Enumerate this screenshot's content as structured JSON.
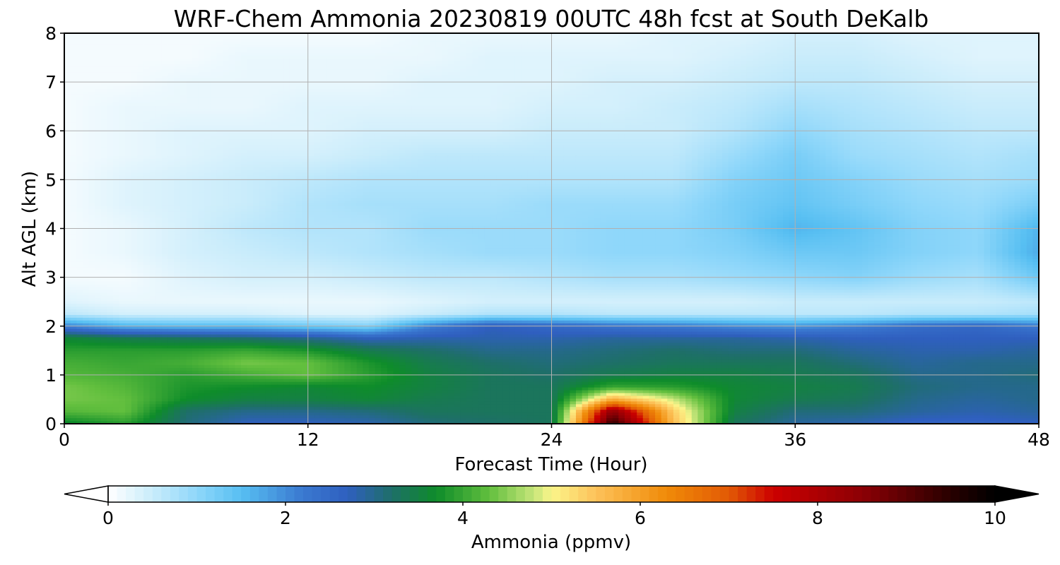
{
  "chart_data": {
    "type": "heatmap",
    "title": "WRF-Chem Ammonia  20230819 00UTC 48h fcst at South DeKalb",
    "xlabel": "Forecast Time (Hour)",
    "ylabel": "Alt AGL (km)",
    "xlim": [
      0,
      48
    ],
    "ylim": [
      0,
      8
    ],
    "x_ticks": [
      "0",
      "12",
      "24",
      "36",
      "48"
    ],
    "y_ticks": [
      "0",
      "1",
      "2",
      "3",
      "4",
      "5",
      "6",
      "7",
      "8"
    ],
    "grid": true,
    "x": [
      0,
      3,
      6,
      9,
      12,
      15,
      18,
      21,
      24,
      27,
      30,
      33,
      36,
      39,
      42,
      45,
      48
    ],
    "y": [
      0,
      0.25,
      0.5,
      0.75,
      1.0,
      1.25,
      1.5,
      1.75,
      2.0,
      2.25,
      2.5,
      3.0,
      3.5,
      4.0,
      4.5,
      5.0,
      5.5,
      6.0,
      6.5,
      7.0,
      7.5,
      8.0
    ],
    "z": [
      [
        3.6,
        3.9,
        3.1,
        2.7,
        2.7,
        2.8,
        3.1,
        3.2,
        3.3,
        9.5,
        5.6,
        3.3,
        2.9,
        2.8,
        2.6,
        2.6,
        2.7
      ],
      [
        4.2,
        4.3,
        3.2,
        3.0,
        3.0,
        3.1,
        3.3,
        3.3,
        3.3,
        8.5,
        5.4,
        3.5,
        3.1,
        3.1,
        2.9,
        2.8,
        2.9
      ],
      [
        4.4,
        4.3,
        3.7,
        3.5,
        3.5,
        3.6,
        3.4,
        3.3,
        3.3,
        5.8,
        4.8,
        3.6,
        3.4,
        3.3,
        3.0,
        2.9,
        3.0
      ],
      [
        4.4,
        4.2,
        3.8,
        3.7,
        3.6,
        3.7,
        3.5,
        3.3,
        3.3,
        4.0,
        3.9,
        3.6,
        3.5,
        3.4,
        3.1,
        3.0,
        3.0
      ],
      [
        4.2,
        4.1,
        3.9,
        4.1,
        4.3,
        3.9,
        3.5,
        3.3,
        3.2,
        3.4,
        3.5,
        3.5,
        3.4,
        3.3,
        3.0,
        3.0,
        3.1
      ],
      [
        4.1,
        4.0,
        4.1,
        4.4,
        4.3,
        3.8,
        3.4,
        3.2,
        3.1,
        3.2,
        3.3,
        3.3,
        3.3,
        3.1,
        2.9,
        3.0,
        3.0
      ],
      [
        3.9,
        3.9,
        3.9,
        4.0,
        3.8,
        3.4,
        3.2,
        3.0,
        3.0,
        3.1,
        3.2,
        3.1,
        3.1,
        2.9,
        2.8,
        2.8,
        2.9
      ],
      [
        3.6,
        3.4,
        3.3,
        3.2,
        3.0,
        2.7,
        2.8,
        2.8,
        2.8,
        2.9,
        2.9,
        2.9,
        2.8,
        2.7,
        2.7,
        2.7,
        2.7
      ],
      [
        2.1,
        1.6,
        1.5,
        1.5,
        1.3,
        1.1,
        2.1,
        2.7,
        2.5,
        2.3,
        2.2,
        2.0,
        1.9,
        2.1,
        2.4,
        2.5,
        2.2
      ],
      [
        0.6,
        0.4,
        0.4,
        0.4,
        0.3,
        0.3,
        0.5,
        0.7,
        0.7,
        0.6,
        0.6,
        0.6,
        0.6,
        0.6,
        0.7,
        0.7,
        0.8
      ],
      [
        0.3,
        0.2,
        0.2,
        0.2,
        0.2,
        0.2,
        0.3,
        0.4,
        0.4,
        0.4,
        0.4,
        0.4,
        0.5,
        0.5,
        0.5,
        0.5,
        0.6
      ],
      [
        0.1,
        0.1,
        0.3,
        0.4,
        0.4,
        0.5,
        0.6,
        0.6,
        0.7,
        0.8,
        0.8,
        0.9,
        1.0,
        1.1,
        0.9,
        0.8,
        1.3
      ],
      [
        0.1,
        0.2,
        0.4,
        0.5,
        0.6,
        0.7,
        0.8,
        0.9,
        0.9,
        1.0,
        1.0,
        1.1,
        1.3,
        1.3,
        1.1,
        1.0,
        1.7
      ],
      [
        0.1,
        0.2,
        0.4,
        0.6,
        0.7,
        0.7,
        0.9,
        0.9,
        0.9,
        1.0,
        1.0,
        1.2,
        1.6,
        1.4,
        1.1,
        1.0,
        1.6
      ],
      [
        0.1,
        0.3,
        0.4,
        0.5,
        0.7,
        0.8,
        0.8,
        0.8,
        0.9,
        0.9,
        0.9,
        1.2,
        1.4,
        1.2,
        1.0,
        0.9,
        1.2
      ],
      [
        0.1,
        0.3,
        0.4,
        0.5,
        0.6,
        0.7,
        0.7,
        0.7,
        0.7,
        0.7,
        0.7,
        1.1,
        1.3,
        1.1,
        0.9,
        0.8,
        0.9
      ],
      [
        0.1,
        0.2,
        0.3,
        0.4,
        0.4,
        0.5,
        0.6,
        0.6,
        0.6,
        0.6,
        0.6,
        0.9,
        1.2,
        0.9,
        0.8,
        0.7,
        0.8
      ],
      [
        0.1,
        0.2,
        0.3,
        0.3,
        0.3,
        0.4,
        0.4,
        0.4,
        0.5,
        0.5,
        0.5,
        0.7,
        1.0,
        0.8,
        0.7,
        0.6,
        0.6
      ],
      [
        0.1,
        0.2,
        0.2,
        0.2,
        0.3,
        0.3,
        0.3,
        0.3,
        0.4,
        0.4,
        0.5,
        0.6,
        0.8,
        0.7,
        0.6,
        0.5,
        0.5
      ],
      [
        0.1,
        0.1,
        0.2,
        0.2,
        0.2,
        0.2,
        0.3,
        0.3,
        0.3,
        0.4,
        0.4,
        0.5,
        0.6,
        0.6,
        0.5,
        0.4,
        0.4
      ],
      [
        0.1,
        0.1,
        0.1,
        0.2,
        0.2,
        0.2,
        0.2,
        0.3,
        0.3,
        0.3,
        0.3,
        0.4,
        0.5,
        0.5,
        0.4,
        0.3,
        0.3
      ],
      [
        0.1,
        0.1,
        0.1,
        0.1,
        0.1,
        0.1,
        0.2,
        0.2,
        0.2,
        0.2,
        0.3,
        0.3,
        0.4,
        0.4,
        0.3,
        0.3,
        0.3
      ]
    ],
    "colorbar": {
      "label": "Ammonia  (ppmv)",
      "range": [
        0,
        10
      ],
      "ticks": [
        "0",
        "2",
        "4",
        "6",
        "8",
        "10"
      ],
      "extend": "both",
      "levels": 100,
      "orientation": "horizontal",
      "stops": [
        [
          0,
          "#ffffff"
        ],
        [
          0.5,
          "#c9ecfb"
        ],
        [
          1.0,
          "#8fd7fa"
        ],
        [
          1.5,
          "#57bff2"
        ],
        [
          2.2,
          "#3a78d0"
        ],
        [
          2.7,
          "#2f5fbf"
        ],
        [
          3.2,
          "#1e6f68"
        ],
        [
          3.7,
          "#0e8c2a"
        ],
        [
          4.3,
          "#62bf3e"
        ],
        [
          4.8,
          "#c6e57a"
        ],
        [
          5.0,
          "#fbf58a"
        ],
        [
          5.5,
          "#fdc25a"
        ],
        [
          6.3,
          "#f08a08"
        ],
        [
          7.0,
          "#e25a05"
        ],
        [
          7.5,
          "#cc0000"
        ],
        [
          8.5,
          "#8c0005"
        ],
        [
          9.5,
          "#280000"
        ],
        [
          10,
          "#000000"
        ]
      ]
    }
  }
}
